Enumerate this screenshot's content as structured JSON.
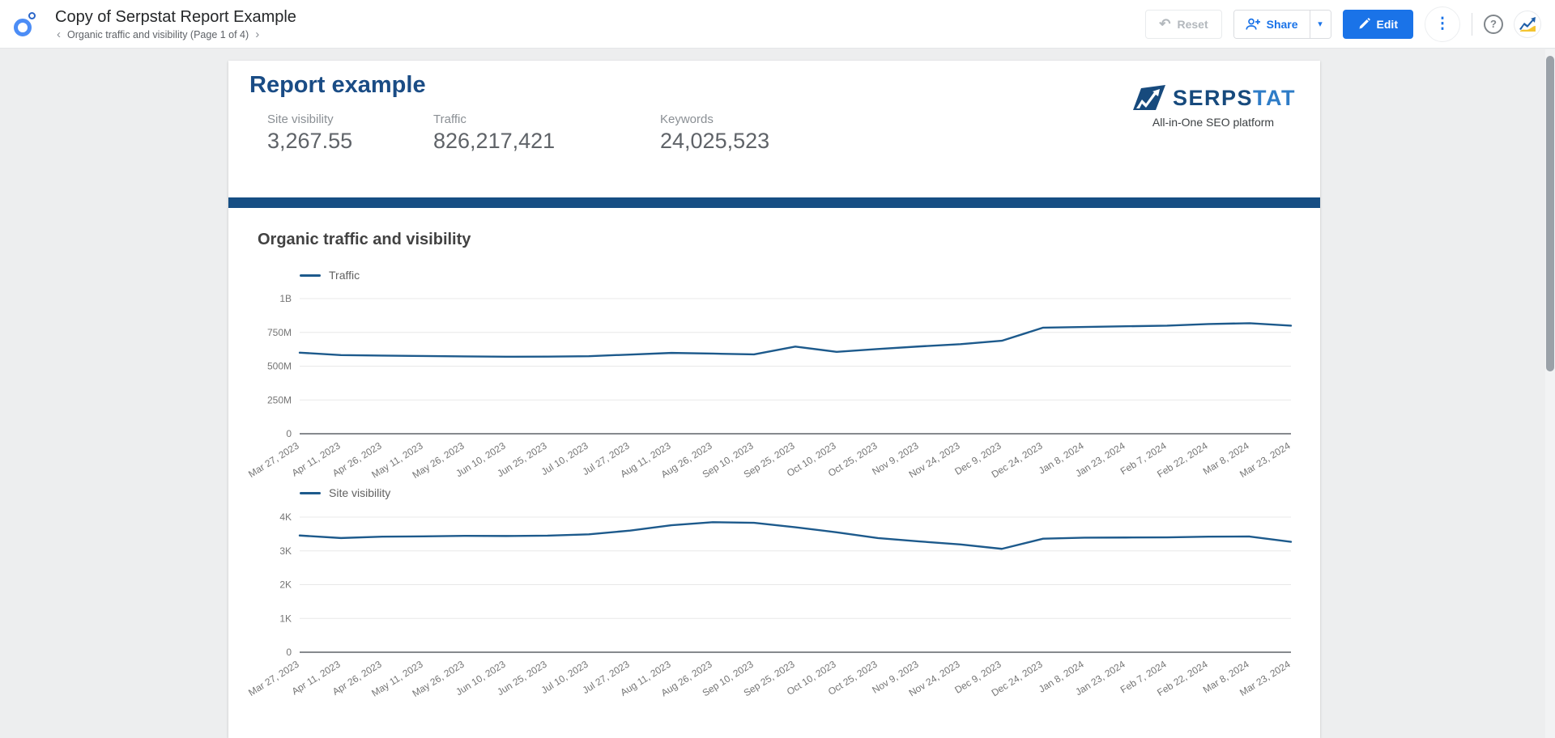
{
  "header": {
    "title": "Copy of Serpstat Report Example",
    "breadcrumb": "Organic traffic and visibility (Page 1 of 4)",
    "reset_label": "Reset",
    "share_label": "Share",
    "edit_label": "Edit",
    "more_glyph": "⋮",
    "help_glyph": "?",
    "undo_glyph": "↶",
    "caret_glyph": "▾"
  },
  "report": {
    "title": "Report example",
    "stats": [
      {
        "label": "Site visibility",
        "value": "3,267.55"
      },
      {
        "label": "Traffic",
        "value": "826,217,421"
      },
      {
        "label": "Keywords",
        "value": "24,025,523"
      }
    ],
    "brand": {
      "name_dark": "SERPS",
      "name_light": "TAT",
      "tagline": "All-in-One SEO platform"
    }
  },
  "section": {
    "title": "Organic traffic and visibility"
  },
  "colors": {
    "accent_blue": "#1a73e8",
    "navy_bar": "#164e84",
    "brand_dark": "#174a7d",
    "brand_light": "#2e7cc7",
    "chart_line": "#1d5a8c",
    "report_title_blue": "#1a4c85"
  },
  "chart_data": [
    {
      "type": "line",
      "legend": "Traffic",
      "ylim": [
        0,
        1000000000
      ],
      "yticks": [
        "0",
        "250M",
        "500M",
        "750M",
        "1B"
      ],
      "grid": true,
      "legend_position": "top-left",
      "x": [
        "Mar 27, 2023",
        "Apr 11, 2023",
        "Apr 26, 2023",
        "May 11, 2023",
        "May 26, 2023",
        "Jun 10, 2023",
        "Jun 25, 2023",
        "Jul 10, 2023",
        "Jul 27, 2023",
        "Aug 11, 2023",
        "Aug 26, 2023",
        "Sep 10, 2023",
        "Sep 25, 2023",
        "Oct 10, 2023",
        "Oct 25, 2023",
        "Nov 9, 2023",
        "Nov 24, 2023",
        "Dec 9, 2023",
        "Dec 24, 2023",
        "Jan 8, 2024",
        "Jan 23, 2024",
        "Feb 7, 2024",
        "Feb 22, 2024",
        "Mar 8, 2024",
        "Mar 23, 2024"
      ],
      "values": [
        600000000,
        582000000,
        578000000,
        575000000,
        572000000,
        570000000,
        571000000,
        574000000,
        586000000,
        598000000,
        593000000,
        587000000,
        645000000,
        606000000,
        627000000,
        646000000,
        663000000,
        688000000,
        785000000,
        790000000,
        795000000,
        800000000,
        812000000,
        818000000,
        800000000
      ]
    },
    {
      "type": "line",
      "legend": "Site visibility",
      "ylim": [
        0,
        4000
      ],
      "yticks": [
        "0",
        "1K",
        "2K",
        "3K",
        "4K"
      ],
      "grid": true,
      "legend_position": "top-left",
      "x": [
        "Mar 27, 2023",
        "Apr 11, 2023",
        "Apr 26, 2023",
        "May 11, 2023",
        "May 26, 2023",
        "Jun 10, 2023",
        "Jun 25, 2023",
        "Jul 10, 2023",
        "Jul 27, 2023",
        "Aug 11, 2023",
        "Aug 26, 2023",
        "Sep 10, 2023",
        "Sep 25, 2023",
        "Oct 10, 2023",
        "Oct 25, 2023",
        "Nov 9, 2023",
        "Nov 24, 2023",
        "Dec 9, 2023",
        "Dec 24, 2023",
        "Jan 8, 2024",
        "Jan 23, 2024",
        "Feb 7, 2024",
        "Feb 22, 2024",
        "Mar 8, 2024",
        "Mar 23, 2024"
      ],
      "values": [
        3455,
        3380,
        3420,
        3430,
        3445,
        3440,
        3450,
        3490,
        3600,
        3760,
        3850,
        3830,
        3700,
        3550,
        3380,
        3280,
        3190,
        3060,
        3360,
        3390,
        3395,
        3400,
        3420,
        3425,
        3268
      ]
    }
  ]
}
